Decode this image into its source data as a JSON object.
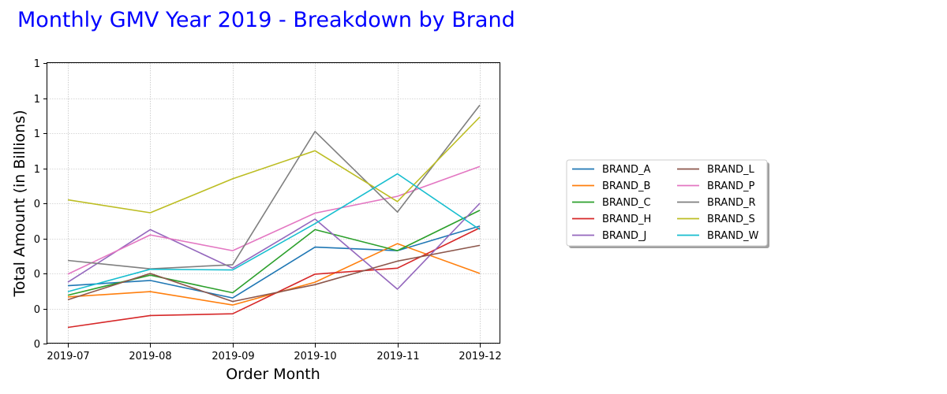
{
  "chart_data": {
    "type": "line",
    "title": "Monthly GMV Year 2019 - Breakdown by Brand",
    "xlabel": "Order Month",
    "ylabel": "Total Amount (in Billions)",
    "categories": [
      "2019-07",
      "2019-08",
      "2019-09",
      "2019-10",
      "2019-11",
      "2019-12"
    ],
    "ylim": [
      0,
      0.8
    ],
    "y_ticks": [
      0,
      0.1,
      0.2,
      0.3,
      0.4,
      0.5,
      0.6,
      0.7,
      0.8
    ],
    "y_tick_labels": [
      "0",
      "0",
      "0",
      "0",
      "0",
      "1",
      "1",
      "1",
      "1"
    ],
    "grid": true,
    "legend_placement": "right",
    "legend_columns": 2,
    "series": [
      {
        "name": "BRAND_A",
        "color": "#1f77b4",
        "values": [
          0.165,
          0.18,
          0.13,
          0.275,
          0.265,
          0.335
        ]
      },
      {
        "name": "BRAND_B",
        "color": "#ff7f0e",
        "values": [
          0.133,
          0.148,
          0.11,
          0.175,
          0.285,
          0.2
        ]
      },
      {
        "name": "BRAND_C",
        "color": "#2ca02c",
        "values": [
          0.138,
          0.195,
          0.145,
          0.325,
          0.265,
          0.38
        ]
      },
      {
        "name": "BRAND_H",
        "color": "#d62728",
        "values": [
          0.046,
          0.08,
          0.085,
          0.198,
          0.215,
          0.33
        ]
      },
      {
        "name": "BRAND_J",
        "color": "#9467bd",
        "values": [
          0.175,
          0.325,
          0.215,
          0.355,
          0.155,
          0.4
        ]
      },
      {
        "name": "BRAND_L",
        "color": "#8c564b",
        "values": [
          0.125,
          0.2,
          0.12,
          0.168,
          0.235,
          0.28
        ]
      },
      {
        "name": "BRAND_P",
        "color": "#e377c2",
        "values": [
          0.198,
          0.31,
          0.265,
          0.372,
          0.42,
          0.505
        ]
      },
      {
        "name": "BRAND_R",
        "color": "#7f7f7f",
        "values": [
          0.237,
          0.213,
          0.225,
          0.605,
          0.375,
          0.68
        ]
      },
      {
        "name": "BRAND_S",
        "color": "#bcbd22",
        "values": [
          0.41,
          0.373,
          0.47,
          0.55,
          0.405,
          0.646
        ]
      },
      {
        "name": "BRAND_W",
        "color": "#17becf",
        "values": [
          0.148,
          0.212,
          0.21,
          0.342,
          0.484,
          0.325
        ]
      }
    ]
  }
}
